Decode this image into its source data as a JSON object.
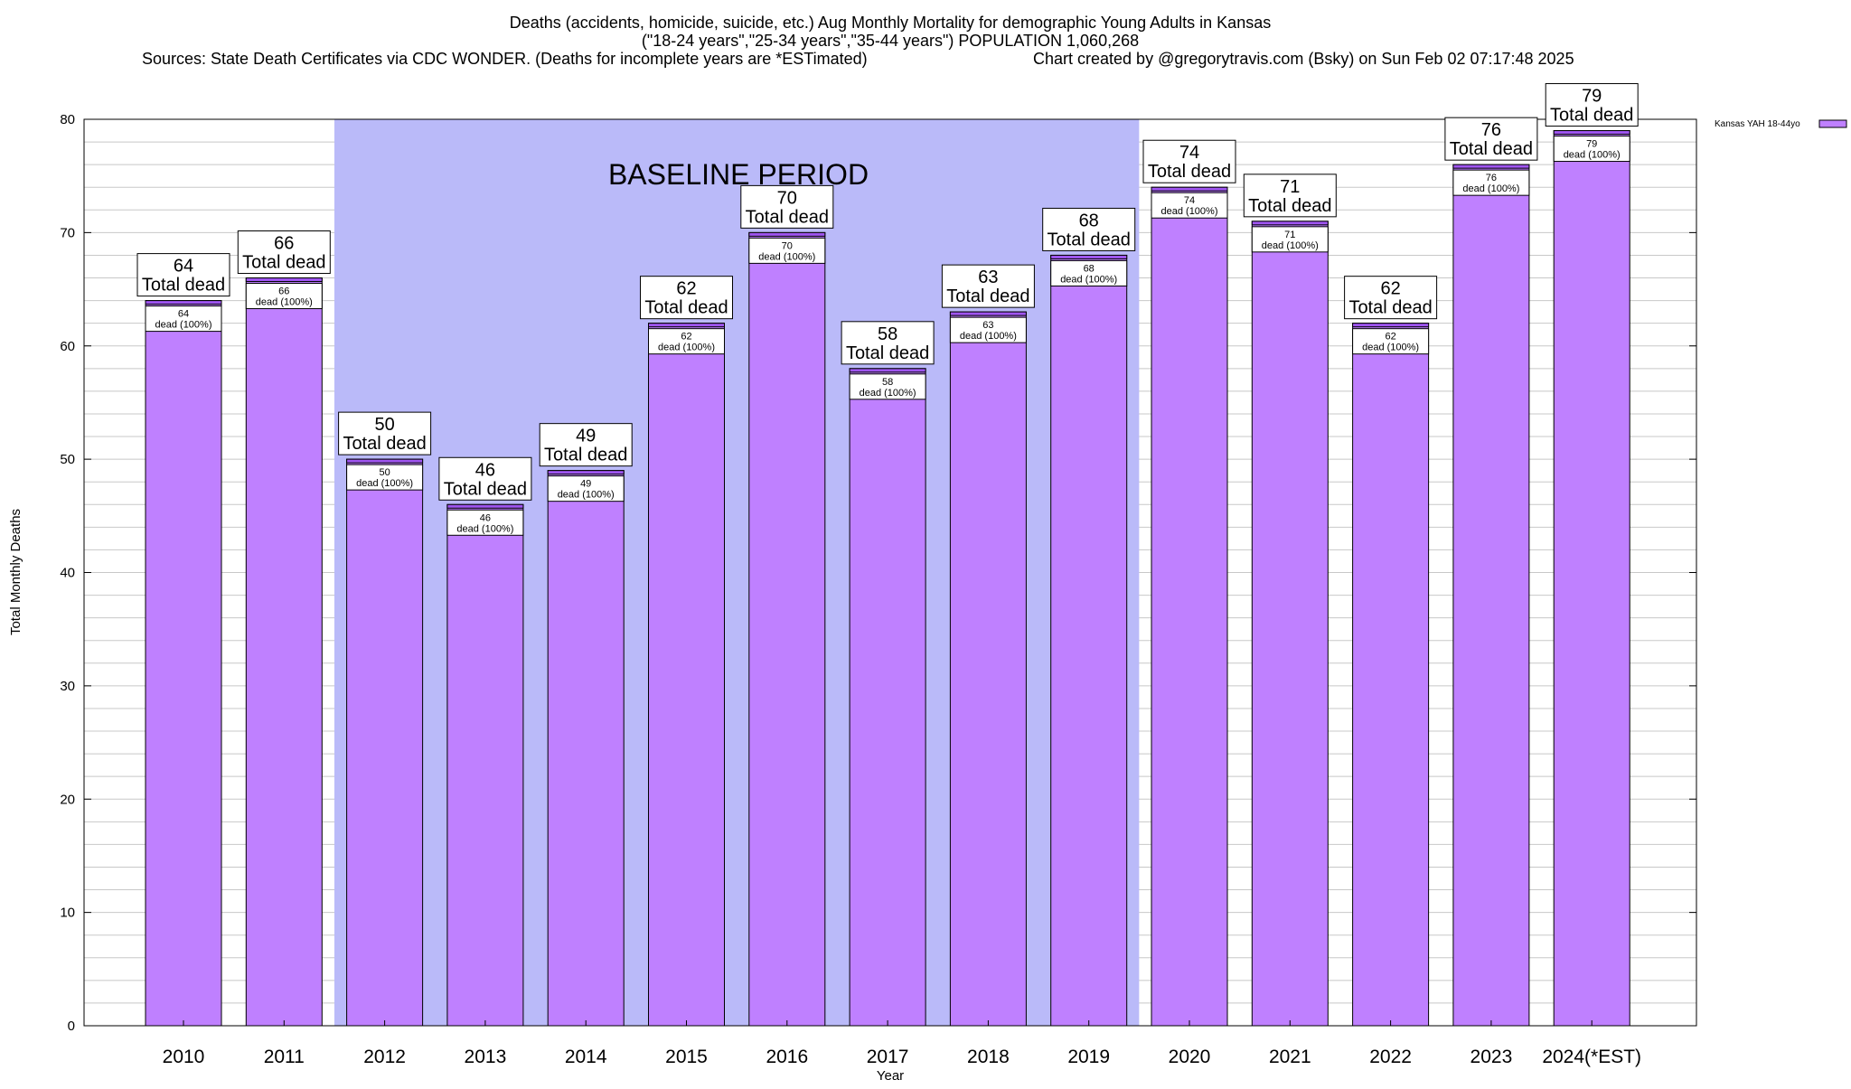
{
  "chart_data": {
    "type": "bar",
    "title_lines": [
      "Deaths (accidents, homicide, suicide, etc.) Aug Monthly Mortality for demographic Young Adults in Kansas",
      "(\"18-24 years\",\"25-34 years\",\"35-44 years\") POPULATION 1,060,268"
    ],
    "source_text": "Sources: State Death Certificates via CDC WONDER. (Deaths for incomplete years are *ESTimated)",
    "credit_text": "Chart created by @gregorytravis.com (Bsky) on Sun Feb 02 07:17:48 2025",
    "xlabel": "Year",
    "ylabel": "Total Monthly Deaths",
    "ylim": [
      0,
      80
    ],
    "y_major_ticks": [
      0,
      10,
      20,
      30,
      40,
      50,
      60,
      70,
      80
    ],
    "y_minor_step": 2,
    "categories": [
      "2010",
      "2011",
      "2012",
      "2013",
      "2014",
      "2015",
      "2016",
      "2017",
      "2018",
      "2019",
      "2020",
      "2021",
      "2022",
      "2023",
      "2024(*EST)"
    ],
    "values": [
      64,
      66,
      50,
      46,
      49,
      62,
      70,
      58,
      63,
      68,
      74,
      71,
      62,
      76,
      79
    ],
    "outer_label_suffix": "Total dead",
    "inner_label_suffix": "dead (100%)",
    "baseline_region": {
      "label": "BASELINE PERIOD",
      "start_category": "2012",
      "end_category": "2019"
    },
    "legend": {
      "label": "Kansas YAH 18-44yo",
      "position": "top-right"
    },
    "colors": {
      "bar_fill": "#bf80ff",
      "bar_cap": "#9f55f0",
      "baseline_fill": "#babaf9",
      "grid": "#c8c8c8",
      "axis": "#000000"
    }
  }
}
